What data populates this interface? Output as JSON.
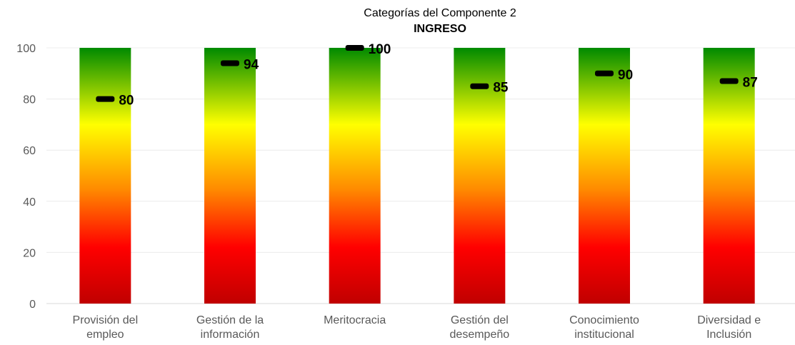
{
  "chart_data": {
    "type": "bar",
    "title": "Categorías del Componente 2",
    "subtitle": "INGRESO",
    "categories": [
      [
        "Provisión del",
        "empleo"
      ],
      [
        "Gestión de la",
        "información"
      ],
      [
        "Meritocracia"
      ],
      [
        "Gestión del",
        "desempeño"
      ],
      [
        "Conocimiento",
        "institucional"
      ],
      [
        "Diversidad e",
        "Inclusión"
      ]
    ],
    "bar_values": [
      100,
      100,
      100,
      100,
      100,
      100
    ],
    "series": [
      {
        "values": [
          80,
          94,
          100,
          85,
          90,
          87
        ]
      }
    ],
    "ylim": [
      0,
      100
    ],
    "yticks": [
      "0",
      "20",
      "40",
      "60",
      "80",
      "100"
    ],
    "grid": true,
    "legend": "none",
    "colors": {
      "gradient_top": "#008a00",
      "gradient_yellow": "#ffff00",
      "gradient_orange": "#ff8c00",
      "gradient_red": "#ff0000",
      "gradient_bottom": "#c00000",
      "marker": "#000000",
      "gridline": "#ececec",
      "axis": "#d9d9d9"
    }
  }
}
